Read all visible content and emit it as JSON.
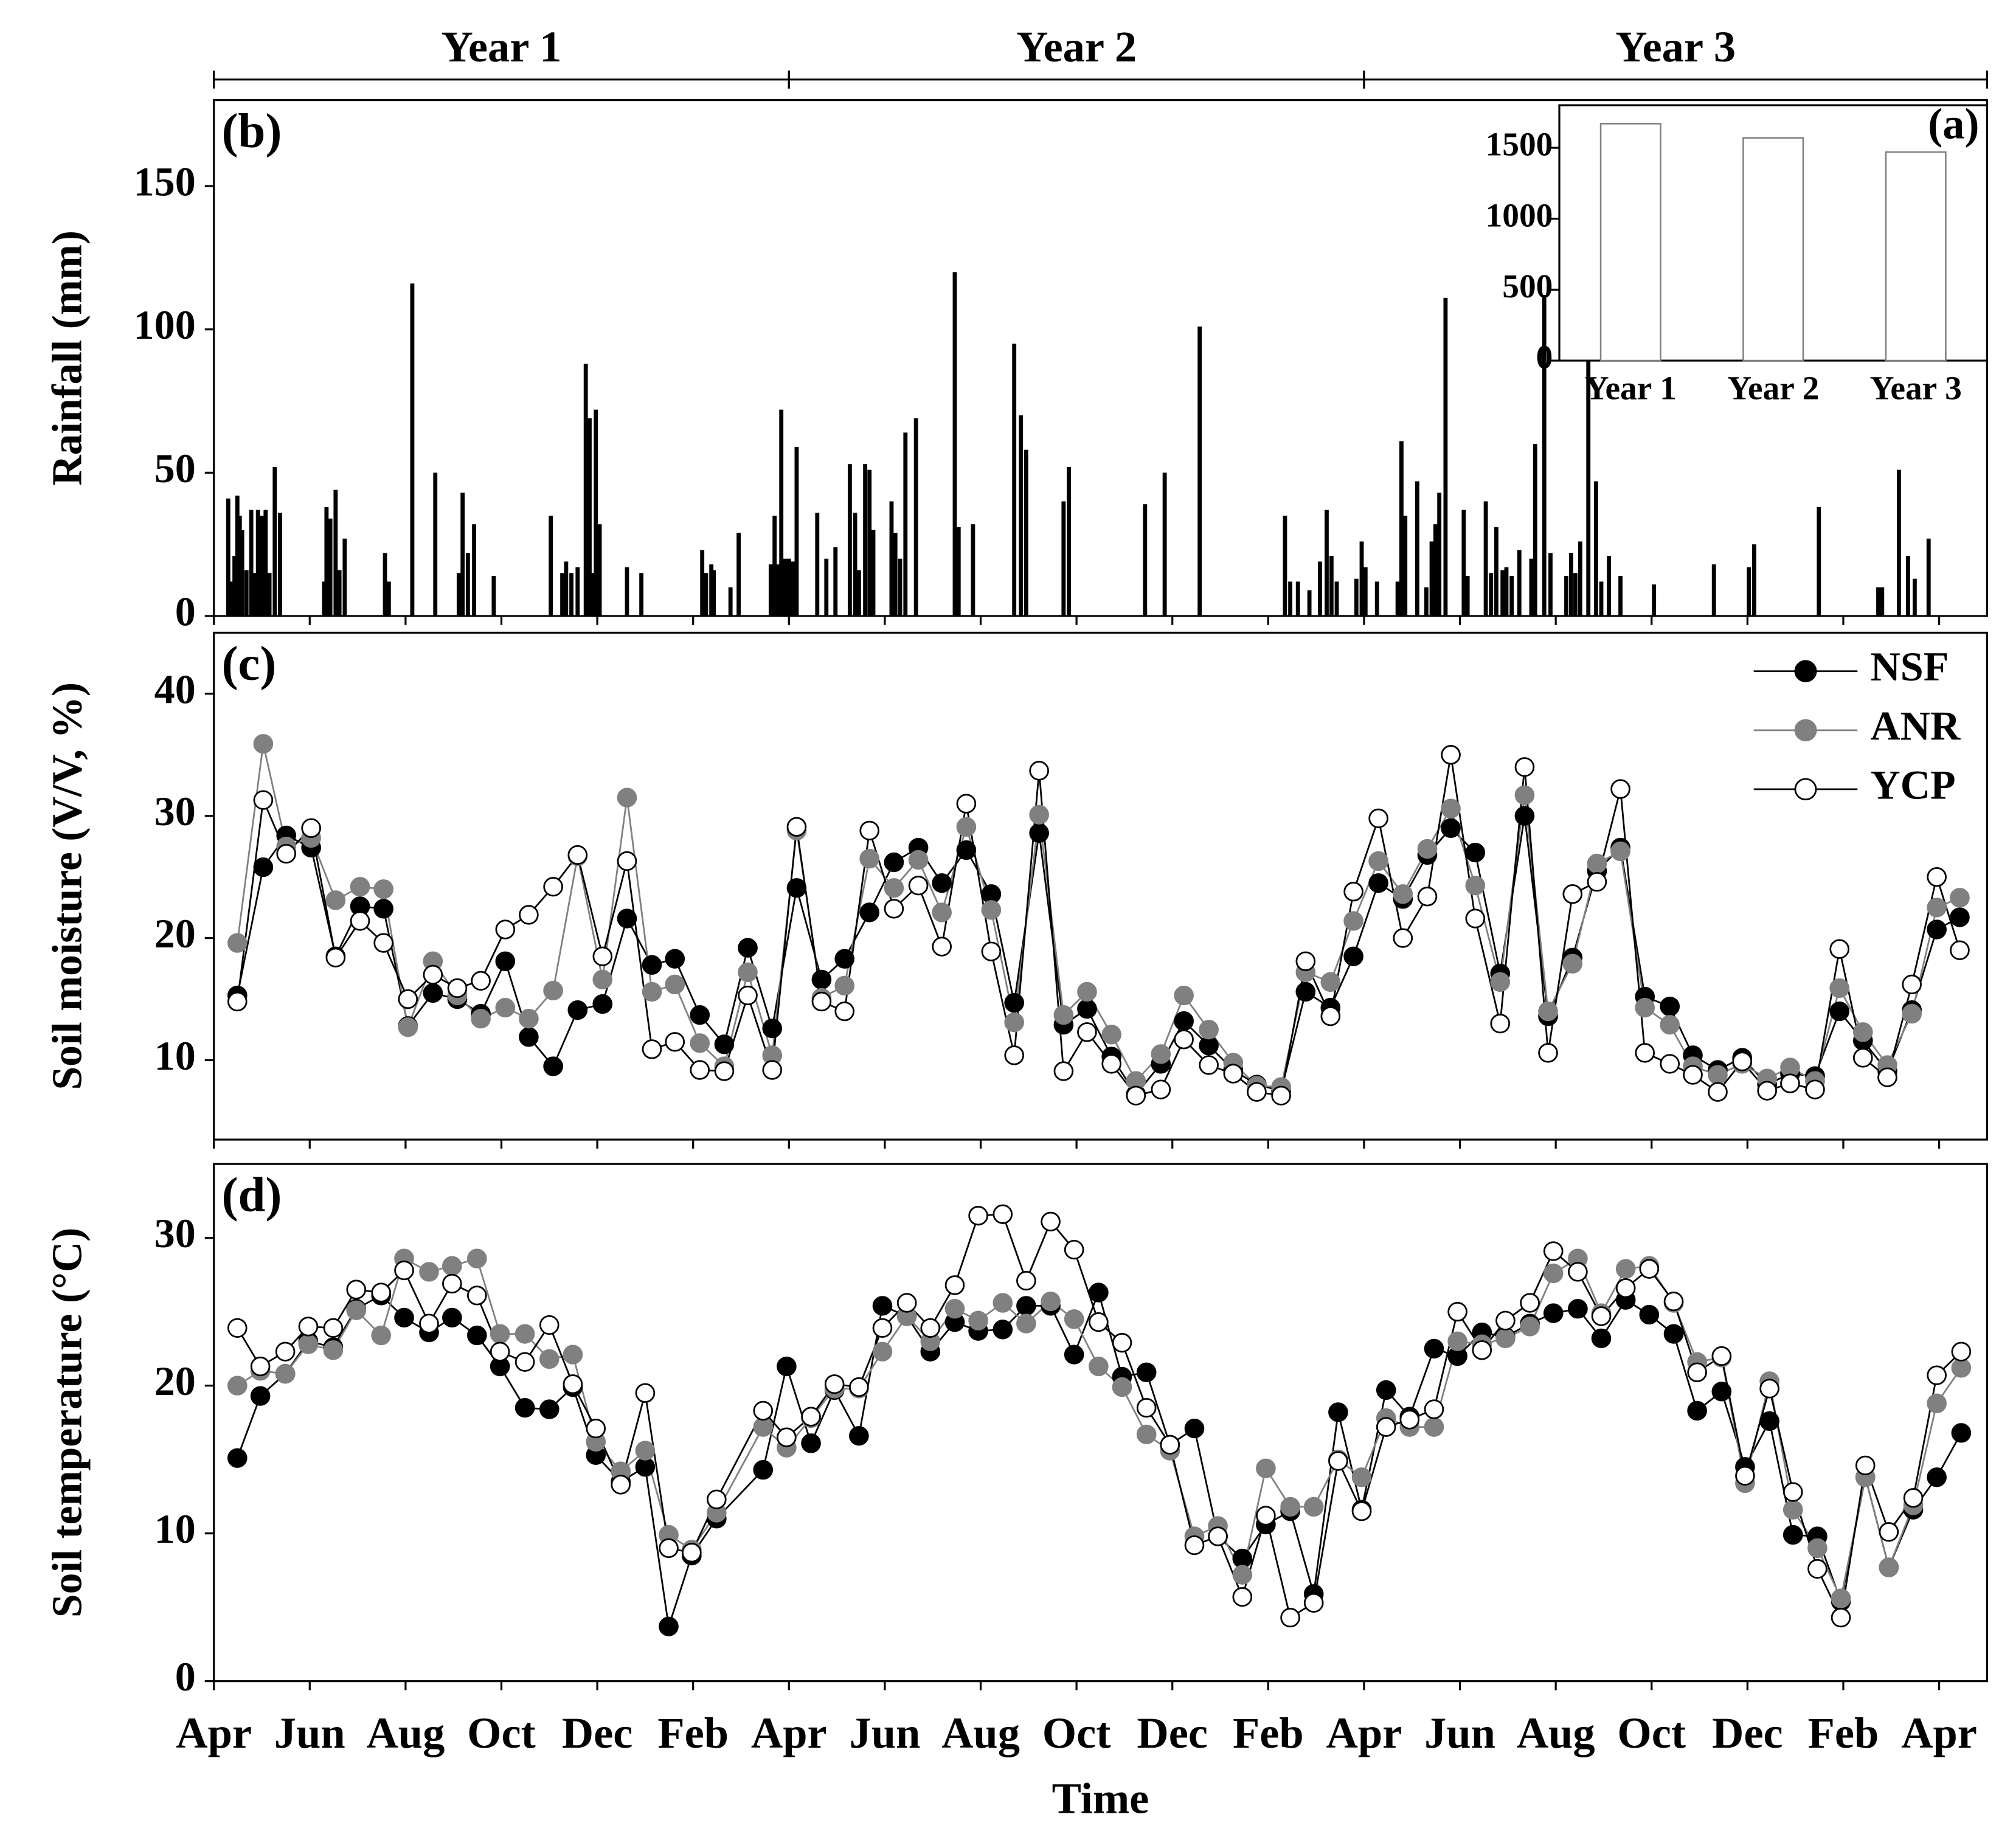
{
  "chart_data": [
    {
      "type": "bar",
      "panel_label": "(b)",
      "ylabel": "Rainfall (mm)",
      "color": "#000000",
      "year_spans": [
        {
          "label": "Year 1",
          "start": 0,
          "end": 12
        },
        {
          "label": "Year 2",
          "start": 12,
          "end": 24
        },
        {
          "label": "Year 3",
          "start": 24,
          "end": 37
        }
      ],
      "xlim": [
        0,
        37
      ],
      "ylim": [
        0,
        180
      ],
      "yticks": [
        0,
        50,
        100,
        150
      ],
      "x": [
        0.3,
        0.35,
        0.43,
        0.49,
        0.54,
        0.59,
        0.68,
        0.78,
        0.84,
        0.92,
        1.0,
        1.08,
        1.16,
        1.27,
        1.38,
        2.3,
        2.35,
        2.43,
        2.54,
        2.62,
        2.73,
        3.57,
        3.65,
        4.14,
        4.62,
        5.11,
        5.19,
        5.3,
        5.43,
        5.84,
        7.03,
        7.27,
        7.35,
        7.46,
        7.59,
        7.76,
        7.84,
        7.89,
        7.97,
        8.05,
        8.62,
        8.92,
        10.19,
        10.27,
        10.38,
        10.43,
        10.78,
        10.95,
        11.62,
        11.7,
        11.78,
        11.84,
        11.92,
        12.0,
        12.08,
        12.16,
        12.59,
        12.78,
        12.97,
        13.27,
        13.38,
        13.46,
        13.59,
        13.68,
        13.76,
        14.14,
        14.22,
        14.32,
        14.43,
        14.65,
        15.46,
        15.54,
        15.84,
        16.7,
        16.84,
        16.95,
        17.73,
        17.84,
        19.43,
        19.84,
        20.57,
        22.35,
        22.46,
        22.62,
        22.86,
        23.08,
        23.22,
        23.32,
        23.43,
        23.84,
        23.95,
        24.03,
        24.27,
        24.7,
        24.78,
        24.86,
        25.11,
        25.3,
        25.41,
        25.49,
        25.57,
        25.7,
        26.08,
        26.16,
        26.54,
        26.65,
        26.76,
        26.89,
        26.97,
        27.08,
        27.24,
        27.49,
        27.57,
        27.76,
        27.89,
        28.22,
        28.32,
        28.41,
        28.51,
        28.68,
        28.84,
        28.95,
        29.11,
        29.35,
        30.05,
        31.3,
        32.03,
        32.14,
        33.49,
        34.73,
        34.81,
        35.16,
        35.35,
        35.49,
        35.78
      ],
      "values": [
        41,
        12,
        21,
        42,
        35,
        30,
        16,
        37,
        15,
        37,
        35,
        37,
        15,
        52,
        36,
        12,
        38,
        34,
        44,
        16,
        27,
        22,
        12,
        116,
        50,
        15,
        43,
        22,
        32,
        14,
        35,
        15,
        19,
        15,
        17,
        88,
        69,
        15,
        72,
        32,
        17,
        15,
        23,
        15,
        18,
        16,
        10,
        29,
        18,
        35,
        18,
        72,
        20,
        20,
        19,
        59,
        36,
        20,
        24,
        53,
        36,
        16,
        53,
        51,
        30,
        40,
        29,
        20,
        64,
        69,
        120,
        31,
        32,
        95,
        70,
        58,
        40,
        52,
        39,
        50,
        101,
        35,
        12,
        12,
        9,
        19,
        37,
        21,
        12,
        13,
        26,
        17,
        12,
        12,
        61,
        35,
        47,
        10,
        26,
        32,
        43,
        111,
        37,
        14,
        40,
        15,
        31,
        16,
        17,
        14,
        23,
        20,
        60,
        112,
        22,
        14,
        22,
        15,
        26,
        95,
        47,
        12,
        21,
        14,
        11,
        18,
        17,
        25,
        38,
        10,
        10,
        51,
        21,
        13,
        27
      ]
    },
    {
      "type": "bar",
      "panel_label": "(a)",
      "color": "#ffffff",
      "edge_color": "#808080",
      "categories": [
        "Year 1",
        "Year 2",
        "Year 3"
      ],
      "values": [
        1670,
        1570,
        1470
      ],
      "ylim": [
        0,
        1800
      ],
      "yticks": [
        0,
        500,
        1000,
        1500
      ]
    },
    {
      "type": "line",
      "panel_label": "(c)",
      "ylabel": "Soil moisture (V/V, %)",
      "legend": "upper right",
      "xlim": [
        0,
        37
      ],
      "ylim": [
        3.5,
        45
      ],
      "yticks": [
        10,
        20,
        30,
        40
      ],
      "x": [
        0.49,
        1.03,
        1.51,
        2.03,
        2.54,
        3.05,
        3.54,
        4.05,
        4.57,
        5.08,
        5.57,
        6.08,
        6.57,
        7.08,
        7.59,
        8.11,
        8.62,
        9.14,
        9.62,
        10.14,
        10.65,
        11.14,
        11.65,
        12.16,
        12.68,
        13.16,
        13.68,
        14.19,
        14.7,
        15.19,
        15.7,
        16.22,
        16.7,
        17.22,
        17.73,
        18.22,
        18.73,
        19.24,
        19.76,
        20.24,
        20.76,
        21.27,
        21.76,
        22.27,
        22.78,
        23.3,
        23.78,
        24.3,
        24.81,
        25.32,
        25.81,
        26.32,
        26.84,
        27.35,
        27.84,
        28.35,
        28.86,
        29.35,
        29.86,
        30.38,
        30.86,
        31.38,
        31.89,
        32.41,
        32.89,
        33.41,
        33.92,
        34.41,
        34.92,
        35.43,
        35.95,
        36.43
      ],
      "series": [
        {
          "name": "NSF",
          "color": "#000000",
          "fill": "#000000",
          "values": [
            15.3,
            25.8,
            28.4,
            27.4,
            18.5,
            22.6,
            22.4,
            12.8,
            15.5,
            15.0,
            13.8,
            18.1,
            11.9,
            9.5,
            14.1,
            14.6,
            21.6,
            17.8,
            18.3,
            13.7,
            11.3,
            19.2,
            12.6,
            24.1,
            16.6,
            18.3,
            22.1,
            26.2,
            27.4,
            24.5,
            27.2,
            23.6,
            14.7,
            28.6,
            12.9,
            14.2,
            10.3,
            7.2,
            9.7,
            13.2,
            11.2,
            9.2,
            8.0,
            7.5,
            15.6,
            14.3,
            18.5,
            24.5,
            23.2,
            26.8,
            29.0,
            27.0,
            17.1,
            30.0,
            13.6,
            18.4,
            25.5,
            27.4,
            15.2,
            14.4,
            10.4,
            9.2,
            10.2,
            8.0,
            8.9,
            8.7,
            14.0,
            11.6,
            9.1,
            14.1,
            20.7,
            21.7
          ]
        },
        {
          "name": "ANR",
          "color": "#808080",
          "fill": "#808080",
          "values": [
            19.6,
            35.9,
            27.5,
            28.2,
            23.1,
            24.2,
            24.0,
            12.7,
            18.1,
            15.3,
            13.4,
            14.3,
            13.4,
            15.7,
            26.7,
            16.6,
            31.5,
            15.6,
            16.2,
            11.4,
            9.5,
            17.2,
            10.4,
            28.8,
            15.1,
            16.1,
            26.5,
            24.1,
            26.4,
            22.1,
            29.1,
            22.3,
            13.1,
            30.1,
            13.7,
            15.6,
            12.1,
            8.3,
            10.5,
            15.3,
            12.5,
            9.8,
            7.9,
            7.8,
            17.2,
            16.4,
            21.4,
            26.3,
            23.6,
            27.3,
            30.6,
            24.3,
            16.4,
            31.7,
            14.0,
            17.9,
            26.1,
            27.1,
            14.3,
            12.9,
            9.5,
            8.8,
            9.7,
            8.5,
            9.4,
            8.3,
            15.9,
            12.3,
            9.6,
            13.8,
            22.5,
            23.3
          ]
        },
        {
          "name": "YCP",
          "color": "#000000",
          "fill": "#ffffff",
          "values": [
            14.8,
            31.3,
            26.9,
            29.0,
            18.4,
            21.4,
            19.6,
            15.0,
            17.0,
            15.9,
            16.5,
            20.7,
            21.9,
            24.2,
            26.8,
            18.5,
            26.3,
            10.9,
            11.5,
            9.2,
            9.1,
            15.3,
            9.2,
            29.1,
            14.8,
            14.0,
            28.8,
            22.4,
            24.3,
            19.3,
            31.0,
            18.9,
            10.4,
            33.7,
            9.1,
            12.3,
            9.7,
            7.1,
            7.6,
            11.7,
            9.6,
            8.9,
            7.4,
            7.1,
            18.1,
            13.6,
            23.8,
            29.8,
            20.0,
            23.4,
            35.0,
            21.6,
            13.0,
            34.0,
            10.6,
            23.6,
            24.6,
            32.2,
            10.6,
            9.7,
            8.8,
            7.4,
            9.9,
            7.5,
            8.1,
            7.6,
            19.1,
            10.2,
            8.6,
            16.2,
            25.0,
            19.0
          ]
        }
      ]
    },
    {
      "type": "line",
      "panel_label": "(d)",
      "ylabel": "Soil temperature (°C)",
      "xlabel": "Time",
      "xlim": [
        0,
        37
      ],
      "ylim": [
        0,
        35
      ],
      "yticks": [
        0,
        10,
        20,
        30
      ],
      "xticks": [
        {
          "value": 0,
          "label": "Apr"
        },
        {
          "value": 2,
          "label": "Jun"
        },
        {
          "value": 4,
          "label": "Aug"
        },
        {
          "value": 6,
          "label": "Oct"
        },
        {
          "value": 8,
          "label": "Dec"
        },
        {
          "value": 10,
          "label": "Feb"
        },
        {
          "value": 12,
          "label": "Apr"
        },
        {
          "value": 14,
          "label": "Jun"
        },
        {
          "value": 16,
          "label": "Aug"
        },
        {
          "value": 18,
          "label": "Oct"
        },
        {
          "value": 20,
          "label": "Dec"
        },
        {
          "value": 22,
          "label": "Feb"
        },
        {
          "value": 24,
          "label": "Apr"
        },
        {
          "value": 26,
          "label": "Jun"
        },
        {
          "value": 28,
          "label": "Aug"
        },
        {
          "value": 30,
          "label": "Oct"
        },
        {
          "value": 32,
          "label": "Dec"
        },
        {
          "value": 34,
          "label": "Feb"
        },
        {
          "value": 36,
          "label": "Apr"
        }
      ],
      "x": [
        0.49,
        0.97,
        1.49,
        1.97,
        2.49,
        2.97,
        3.49,
        3.97,
        4.49,
        4.97,
        5.49,
        5.97,
        6.49,
        7.0,
        7.49,
        7.97,
        8.49,
        9.0,
        9.49,
        9.97,
        10.49,
        11.46,
        11.95,
        12.46,
        12.95,
        13.46,
        13.95,
        14.46,
        14.95,
        15.46,
        15.95,
        16.46,
        16.95,
        17.46,
        17.95,
        18.46,
        18.95,
        19.46,
        19.95,
        20.46,
        20.95,
        21.46,
        21.95,
        22.46,
        22.95,
        23.46,
        23.95,
        24.46,
        24.95,
        25.46,
        25.95,
        26.46,
        26.95,
        27.46,
        27.95,
        28.46,
        28.95,
        29.46,
        29.95,
        30.46,
        30.95,
        31.46,
        31.95,
        32.46,
        32.95,
        33.46,
        33.95,
        34.46,
        34.95,
        35.46,
        35.95,
        36.46
      ],
      "series": [
        {
          "color": "#000000",
          "fill": "#000000",
          "values": [
            15.1,
            19.3,
            20.8,
            23.0,
            22.6,
            25.2,
            26.1,
            24.6,
            23.6,
            24.6,
            23.4,
            21.3,
            18.5,
            18.4,
            19.9,
            15.3,
            13.5,
            14.5,
            3.7,
            8.5,
            11.0,
            14.3,
            21.3,
            16.1,
            19.7,
            16.6,
            25.4,
            24.7,
            22.3,
            24.3,
            23.7,
            23.8,
            25.4,
            25.4,
            22.1,
            26.3,
            20.6,
            20.9,
            16.0,
            17.1,
            9.8,
            8.3,
            10.6,
            11.5,
            5.9,
            18.2,
            11.6,
            19.7,
            17.9,
            22.5,
            22.0,
            23.6,
            23.3,
            24.2,
            24.9,
            25.2,
            23.2,
            25.8,
            24.8,
            23.5,
            18.3,
            19.6,
            14.5,
            17.6,
            9.9,
            9.8,
            5.4,
            13.8,
            7.7,
            11.6,
            13.8,
            16.8
          ]
        },
        {
          "color": "#808080",
          "fill": "#808080",
          "values": [
            20.0,
            21.0,
            20.8,
            22.8,
            22.4,
            25.1,
            23.4,
            28.6,
            27.7,
            28.1,
            28.6,
            23.5,
            23.5,
            21.8,
            22.1,
            16.2,
            14.2,
            15.6,
            9.9,
            8.9,
            11.4,
            17.2,
            15.8,
            17.8,
            19.8,
            19.8,
            22.3,
            24.7,
            23.0,
            25.2,
            24.4,
            25.6,
            24.2,
            25.7,
            24.5,
            21.3,
            19.9,
            16.7,
            15.6,
            9.8,
            10.5,
            7.2,
            14.4,
            11.8,
            11.8,
            15.0,
            13.8,
            17.8,
            17.2,
            17.2,
            23.0,
            22.8,
            23.2,
            24.0,
            27.6,
            28.6,
            24.9,
            27.9,
            28.1,
            25.6,
            21.6,
            21.9,
            13.4,
            20.3,
            11.6,
            9.0,
            5.6,
            13.8,
            7.7,
            11.9,
            18.8,
            21.2
          ]
        },
        {
          "color": "#000000",
          "fill": "#ffffff",
          "values": [
            23.9,
            21.3,
            22.3,
            24.0,
            23.9,
            26.5,
            26.3,
            27.8,
            24.2,
            26.9,
            26.1,
            22.3,
            21.6,
            24.1,
            20.1,
            17.1,
            13.3,
            19.5,
            9.0,
            8.7,
            12.3,
            18.3,
            16.5,
            17.9,
            20.1,
            19.9,
            23.9,
            25.6,
            23.9,
            26.8,
            31.5,
            31.6,
            27.1,
            31.1,
            29.2,
            24.3,
            22.9,
            18.5,
            16.0,
            9.2,
            9.8,
            5.7,
            11.2,
            4.3,
            5.3,
            14.9,
            11.5,
            17.2,
            17.7,
            18.4,
            25.0,
            22.4,
            24.4,
            25.6,
            29.1,
            27.7,
            24.7,
            26.6,
            27.9,
            25.7,
            20.9,
            22.0,
            13.9,
            19.8,
            12.8,
            7.6,
            4.3,
            14.6,
            10.1,
            12.4,
            20.7,
            22.3
          ]
        }
      ]
    }
  ]
}
